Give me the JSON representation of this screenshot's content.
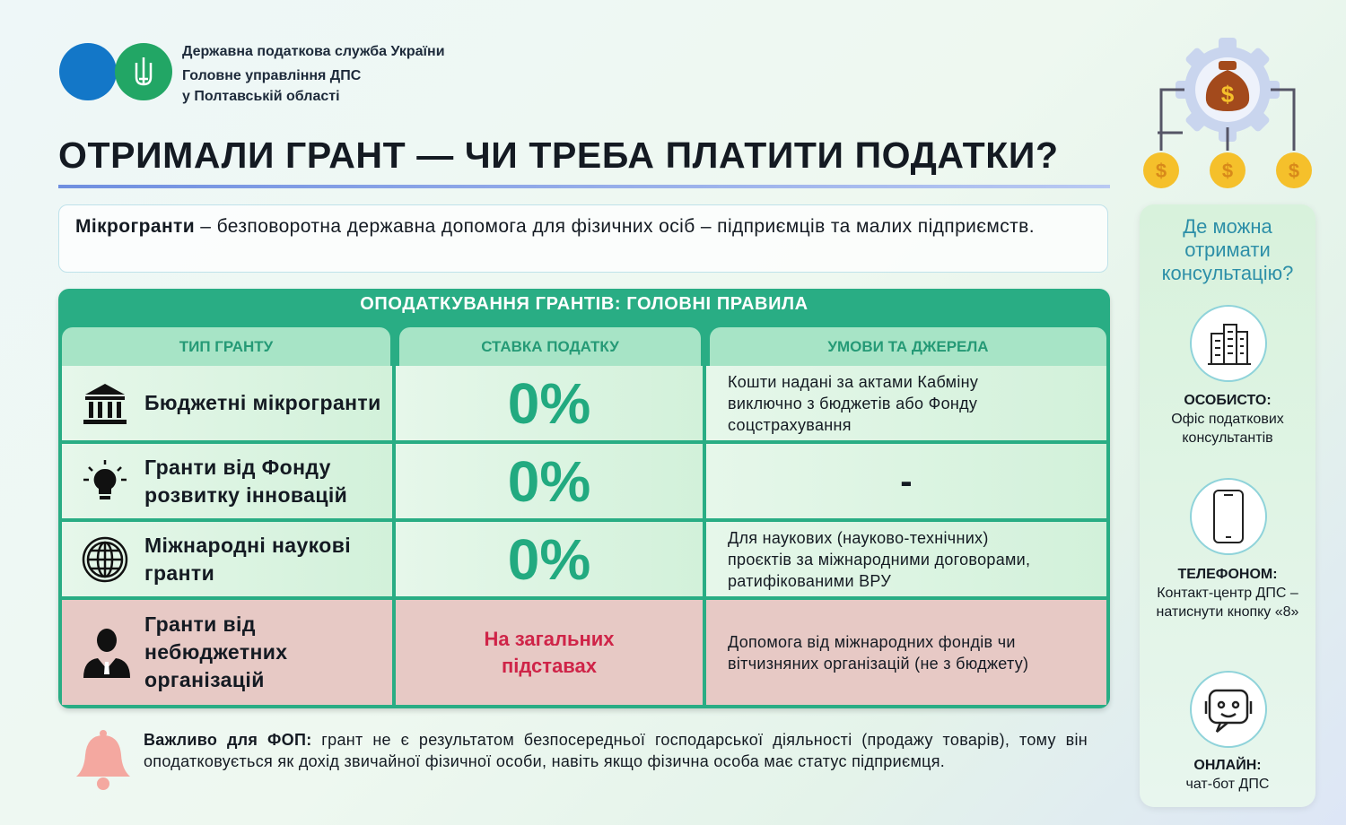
{
  "header": {
    "org": [
      "Державна податкова служба України",
      "Головне управління ДПС",
      "у Полтавській області"
    ],
    "title": "ОТРИМАЛИ ГРАНТ — ЧИ ТРЕБА ПЛАТИТИ ПОДАТКИ?"
  },
  "intro": {
    "term": "Мікрогранти",
    "text": "– безповоротна державна допомога для фізичних осіб – підприємців та малих підприємств."
  },
  "table": {
    "title": "ОПОДАТКУВАННЯ ГРАНТІВ: ГОЛОВНІ ПРАВИЛА",
    "headers": [
      "ТИП ГРАНТУ",
      "СТАВКА ПОДАТКУ",
      "УМОВИ ТА ДЖЕРЕЛА"
    ],
    "rows": [
      [
        "Бюджетні мікрогранти",
        "0%",
        "Кошти надані за актами Кабміну виключно з бюджетів або Фонду соцстрахування"
      ],
      [
        "Гранти від Фонду розвитку інновацій",
        "0%",
        "-"
      ],
      [
        "Міжнародні наукові гранти",
        "0%",
        "Для наукових (науково-технічних) проєктів за міжнародними договорами, ратифікованими ВРУ"
      ],
      [
        "Гранти від небюджетних організацій",
        "На загальних підставах",
        "Допомога від міжнародних фондів чи вітчизняних організацій (не з бюджету)"
      ]
    ]
  },
  "note": {
    "lead": "Важливо для ФОП:",
    "text": "грант не є результатом безпосередньої господарської діяльності (продажу товарів), тому він оподатковується як дохід звичайної фізичної особи, навіть якщо фізична особа має статус підприємця."
  },
  "sidebar": {
    "title": "Де можна отримати консультацію?",
    "items": [
      {
        "label": "ОСОБИСТО:",
        "text": "Офіс податкових консультантів"
      },
      {
        "label": "ТЕЛЕФОНОМ:",
        "text": "Контакт-центр ДПС – натиснути кнопку «8»"
      },
      {
        "label": "ОНЛАЙН:",
        "text": "чат-бот ДПС"
      }
    ]
  }
}
